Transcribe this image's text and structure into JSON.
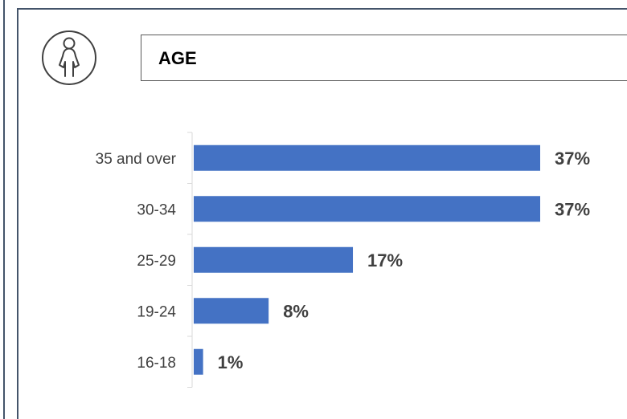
{
  "header": {
    "title": "AGE",
    "icon": "female-person-icon"
  },
  "colors": {
    "bar": "#4472c4",
    "frame": "#44546a",
    "label": "#404040"
  },
  "chart_data": {
    "type": "bar",
    "orientation": "horizontal",
    "title": "AGE",
    "categories": [
      "35 and over",
      "30-34",
      "25-29",
      "19-24",
      "16-18"
    ],
    "values": [
      37,
      37,
      17,
      8,
      1
    ],
    "value_labels": [
      "37%",
      "37%",
      "17%",
      "8%",
      "1%"
    ],
    "unit": "%",
    "xlim": [
      0,
      40
    ],
    "grid": false,
    "legend": "none"
  }
}
